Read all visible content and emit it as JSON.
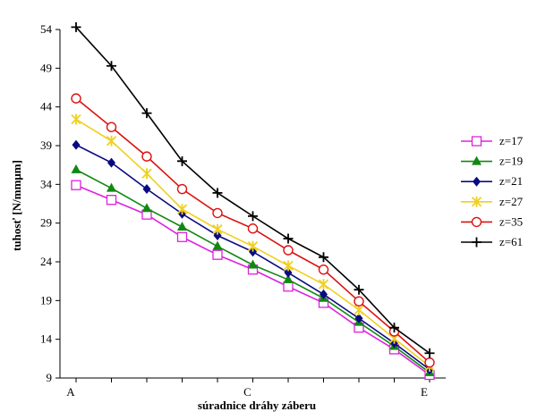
{
  "chart_data": {
    "type": "line",
    "xlabel": "súradnice dráhy záberu",
    "ylabel": "tuhosť [N/mmμm]",
    "ylim": [
      9,
      54
    ],
    "yticks": [
      9,
      14,
      19,
      24,
      29,
      34,
      39,
      44,
      49,
      54
    ],
    "x_points": 11,
    "x_tick_labels": [
      {
        "index": 0,
        "label": "A"
      },
      {
        "index": 5,
        "label": "C"
      },
      {
        "index": 10,
        "label": "E"
      }
    ],
    "grid": false,
    "legend_position": "right",
    "series": [
      {
        "name": "z=17",
        "color": "#dd22dd",
        "marker": "square-open",
        "values": [
          33.9,
          32.0,
          30.1,
          27.2,
          24.9,
          23.0,
          20.8,
          18.7,
          15.5,
          12.7,
          9.4
        ]
      },
      {
        "name": "z=19",
        "color": "#118811",
        "marker": "triangle",
        "values": [
          35.9,
          33.5,
          30.9,
          28.5,
          26.0,
          23.6,
          21.7,
          19.3,
          16.2,
          13.1,
          9.7
        ]
      },
      {
        "name": "z=21",
        "color": "#0a0a80",
        "marker": "diamond",
        "values": [
          39.1,
          36.8,
          33.4,
          30.2,
          27.4,
          25.3,
          22.6,
          19.8,
          16.7,
          13.5,
          10.1
        ]
      },
      {
        "name": "z=27",
        "color": "#f0d020",
        "marker": "asterisk",
        "values": [
          42.4,
          39.6,
          35.4,
          30.8,
          28.2,
          26.0,
          23.5,
          21.1,
          17.8,
          14.1,
          10.5
        ]
      },
      {
        "name": "z=35",
        "color": "#dd1111",
        "marker": "circle-open",
        "values": [
          45.1,
          41.4,
          37.6,
          33.4,
          30.3,
          28.3,
          25.5,
          23.0,
          18.9,
          15.0,
          11.0
        ]
      },
      {
        "name": "z=61",
        "color": "#000000",
        "marker": "plus",
        "values": [
          54.3,
          49.3,
          43.2,
          37.0,
          32.9,
          29.9,
          27.0,
          24.6,
          20.4,
          15.5,
          12.2
        ]
      }
    ]
  }
}
